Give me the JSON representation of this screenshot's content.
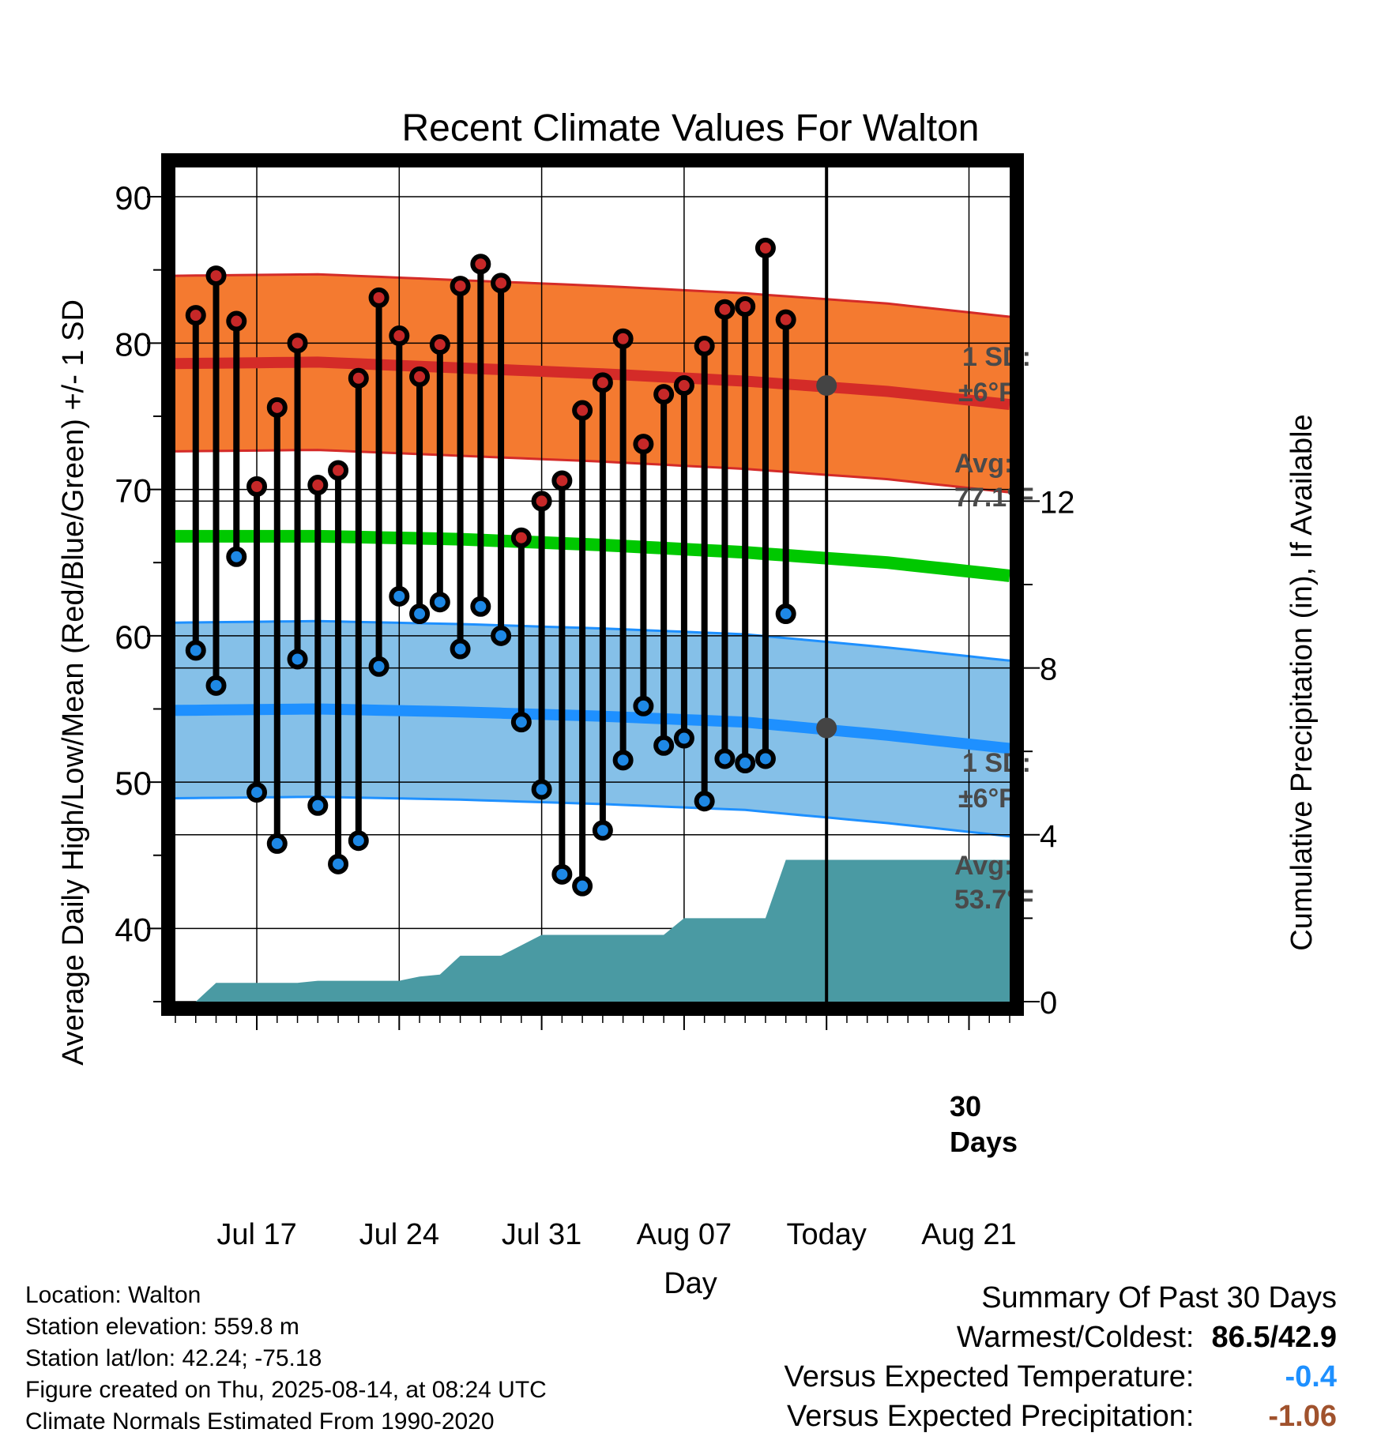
{
  "chart_data": {
    "type": "line",
    "title": "Recent Climate Values For Walton",
    "xlabel": "Day",
    "ylabel_left": "Average Daily High/Low/Mean (Red/Blue/Green) +/- 1 SD",
    "ylabel_right": "Cumulative Precipitation (in), If Available",
    "ylim": [
      35,
      92
    ],
    "y_ticks": [
      40,
      50,
      60,
      70,
      80,
      90
    ],
    "y2lim": [
      0,
      20
    ],
    "y2_ticks": [
      0,
      4,
      8,
      12
    ],
    "xlim": [
      "2025-07-13",
      "2025-08-23"
    ],
    "x_ticks": [
      {
        "date": "2025-07-17",
        "label": "Jul 17"
      },
      {
        "date": "2025-07-24",
        "label": "Jul 24"
      },
      {
        "date": "2025-07-31",
        "label": "Jul 31"
      },
      {
        "date": "2025-08-07",
        "label": "Aug 07"
      },
      {
        "date": "2025-08-14",
        "label": "Today"
      },
      {
        "date": "2025-08-21",
        "label": "Aug 21"
      }
    ],
    "grid": true,
    "today": "2025-08-14",
    "daily_high": [
      {
        "date": "2025-07-14",
        "value": 81.9
      },
      {
        "date": "2025-07-15",
        "value": 84.6
      },
      {
        "date": "2025-07-16",
        "value": 81.5
      },
      {
        "date": "2025-07-17",
        "value": 70.2
      },
      {
        "date": "2025-07-18",
        "value": 75.6
      },
      {
        "date": "2025-07-19",
        "value": 80.0
      },
      {
        "date": "2025-07-20",
        "value": 70.3
      },
      {
        "date": "2025-07-21",
        "value": 71.3
      },
      {
        "date": "2025-07-22",
        "value": 77.6
      },
      {
        "date": "2025-07-23",
        "value": 83.1
      },
      {
        "date": "2025-07-24",
        "value": 80.5
      },
      {
        "date": "2025-07-25",
        "value": 77.7
      },
      {
        "date": "2025-07-26",
        "value": 79.9
      },
      {
        "date": "2025-07-27",
        "value": 83.9
      },
      {
        "date": "2025-07-28",
        "value": 85.4
      },
      {
        "date": "2025-07-29",
        "value": 84.1
      },
      {
        "date": "2025-07-30",
        "value": 66.7
      },
      {
        "date": "2025-07-31",
        "value": 69.2
      },
      {
        "date": "2025-08-01",
        "value": 70.6
      },
      {
        "date": "2025-08-02",
        "value": 75.4
      },
      {
        "date": "2025-08-03",
        "value": 77.3
      },
      {
        "date": "2025-08-04",
        "value": 80.3
      },
      {
        "date": "2025-08-05",
        "value": 73.1
      },
      {
        "date": "2025-08-06",
        "value": 76.5
      },
      {
        "date": "2025-08-07",
        "value": 77.1
      },
      {
        "date": "2025-08-08",
        "value": 79.8
      },
      {
        "date": "2025-08-09",
        "value": 82.3
      },
      {
        "date": "2025-08-10",
        "value": 82.5
      },
      {
        "date": "2025-08-11",
        "value": 86.5
      },
      {
        "date": "2025-08-12",
        "value": 81.6
      }
    ],
    "daily_low": [
      {
        "date": "2025-07-14",
        "value": 59.0
      },
      {
        "date": "2025-07-15",
        "value": 56.6
      },
      {
        "date": "2025-07-16",
        "value": 65.4
      },
      {
        "date": "2025-07-17",
        "value": 49.3
      },
      {
        "date": "2025-07-18",
        "value": 45.8
      },
      {
        "date": "2025-07-19",
        "value": 58.4
      },
      {
        "date": "2025-07-20",
        "value": 48.4
      },
      {
        "date": "2025-07-21",
        "value": 44.4
      },
      {
        "date": "2025-07-22",
        "value": 46.0
      },
      {
        "date": "2025-07-23",
        "value": 57.9
      },
      {
        "date": "2025-07-24",
        "value": 62.7
      },
      {
        "date": "2025-07-25",
        "value": 61.5
      },
      {
        "date": "2025-07-26",
        "value": 62.3
      },
      {
        "date": "2025-07-27",
        "value": 59.1
      },
      {
        "date": "2025-07-28",
        "value": 62.0
      },
      {
        "date": "2025-07-29",
        "value": 60.0
      },
      {
        "date": "2025-07-30",
        "value": 54.1
      },
      {
        "date": "2025-07-31",
        "value": 49.5
      },
      {
        "date": "2025-08-01",
        "value": 43.7
      },
      {
        "date": "2025-08-02",
        "value": 42.9
      },
      {
        "date": "2025-08-03",
        "value": 46.7
      },
      {
        "date": "2025-08-04",
        "value": 51.5
      },
      {
        "date": "2025-08-05",
        "value": 55.2
      },
      {
        "date": "2025-08-06",
        "value": 52.5
      },
      {
        "date": "2025-08-07",
        "value": 53.0
      },
      {
        "date": "2025-08-08",
        "value": 48.7
      },
      {
        "date": "2025-08-09",
        "value": 51.6
      },
      {
        "date": "2025-08-10",
        "value": 51.3
      },
      {
        "date": "2025-08-11",
        "value": 51.6
      },
      {
        "date": "2025-08-12",
        "value": 61.5
      }
    ],
    "normal_high": {
      "dates": [
        "2025-07-13",
        "2025-07-20",
        "2025-07-27",
        "2025-08-03",
        "2025-08-10",
        "2025-08-17",
        "2025-08-23"
      ],
      "values": [
        78.6,
        78.7,
        78.3,
        77.9,
        77.4,
        76.7,
        75.8
      ]
    },
    "normal_high_sd": 6,
    "normal_low": {
      "dates": [
        "2025-07-13",
        "2025-07-20",
        "2025-07-27",
        "2025-08-03",
        "2025-08-10",
        "2025-08-17",
        "2025-08-23"
      ],
      "values": [
        54.9,
        55.0,
        54.8,
        54.5,
        54.1,
        53.2,
        52.3
      ]
    },
    "normal_low_sd": 6,
    "normal_mean": {
      "dates": [
        "2025-07-13",
        "2025-07-20",
        "2025-07-27",
        "2025-08-03",
        "2025-08-10",
        "2025-08-17",
        "2025-08-23"
      ],
      "values": [
        66.8,
        66.8,
        66.6,
        66.2,
        65.7,
        65.0,
        64.1
      ]
    },
    "precip_cumulative": [
      {
        "date": "2025-07-13",
        "value": 0.0
      },
      {
        "date": "2025-07-14",
        "value": 0.0
      },
      {
        "date": "2025-07-15",
        "value": 0.45
      },
      {
        "date": "2025-07-19",
        "value": 0.45
      },
      {
        "date": "2025-07-20",
        "value": 0.5
      },
      {
        "date": "2025-07-24",
        "value": 0.5
      },
      {
        "date": "2025-07-25",
        "value": 0.6
      },
      {
        "date": "2025-07-26",
        "value": 0.65
      },
      {
        "date": "2025-07-27",
        "value": 1.1
      },
      {
        "date": "2025-07-29",
        "value": 1.1
      },
      {
        "date": "2025-07-31",
        "value": 1.6
      },
      {
        "date": "2025-08-06",
        "value": 1.6
      },
      {
        "date": "2025-08-07",
        "value": 2.0
      },
      {
        "date": "2025-08-11",
        "value": 2.0
      },
      {
        "date": "2025-08-12",
        "value": 3.4
      },
      {
        "date": "2025-08-23",
        "value": 3.4
      }
    ],
    "annotations": {
      "high_sd": "1 SD:",
      "high_sd_val": "±6°F",
      "high_avg": "Avg:",
      "high_avg_val": "77.1°F",
      "high_avg_value": 77.1,
      "low_sd": "1 SD:",
      "low_sd_val": "±6°F",
      "low_avg": "Avg:",
      "low_avg_val": "53.7°F",
      "low_avg_value": 53.7,
      "days_num": "30",
      "days_word": "Days"
    }
  },
  "footer": {
    "location": "Location: Walton",
    "elevation": "Station elevation: 559.8 m",
    "latlon": "Station lat/lon: 42.24; -75.18",
    "created": "Figure created on Thu, 2025-08-14, at 08:24 UTC",
    "normals": "Climate Normals Estimated From 1990-2020"
  },
  "summary": {
    "title": "Summary Of Past 30 Days",
    "warmest_label": "Warmest/Coldest:",
    "warmest_value": "86.5/42.9",
    "temp_label": "Versus Expected Temperature:",
    "temp_value": "-0.4",
    "precip_label": "Versus Expected Precipitation:",
    "precip_value": "-1.06"
  },
  "colors": {
    "high_band": "#f47a30",
    "high_line": "#d42b28",
    "low_band": "#85c0e8",
    "low_line": "#1e90ff",
    "mean_line": "#00c800",
    "precip": "#4a9aa3",
    "high_marker": "#c62828",
    "low_marker": "#1e88e5",
    "avg_marker": "#444444",
    "temp_value": "#1e90ff",
    "precip_value": "#a0522d"
  }
}
